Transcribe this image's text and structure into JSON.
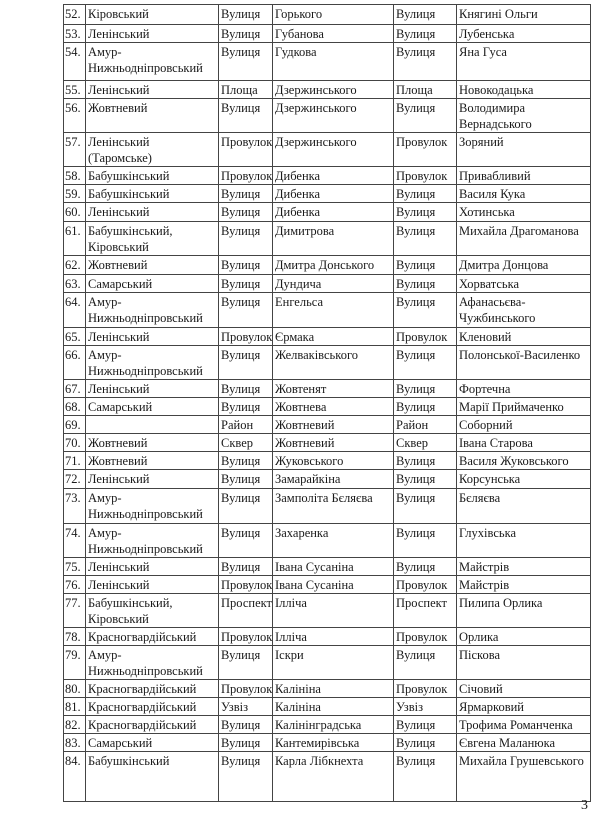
{
  "rows": [
    [
      "52.",
      "Кіровський",
      "Вулиця",
      "Горького",
      "Вулиця",
      "Княгині Ольги"
    ],
    [
      "53.",
      "Ленінський",
      "Вулиця",
      "Губанова",
      "Вулиця",
      "Лубенська"
    ],
    [
      "54.",
      "Амур-Нижньодніпровський",
      "Вулиця",
      "Гудкова",
      "Вулиця",
      "Яна Гуса"
    ],
    [
      "55.",
      "Ленінський",
      "Площа",
      "Дзержинського",
      "Площа",
      "Новокодацька"
    ],
    [
      "56.",
      "Жовтневий",
      "Вулиця",
      "Дзержинського",
      "Вулиця",
      "Володимира Вернадського"
    ],
    [
      "57.",
      "Ленінський (Таромське)",
      "Провулок",
      "Дзержинського",
      "Провулок",
      "Зоряний"
    ],
    [
      "58.",
      "Бабушкінський",
      "Провулок",
      "Дибенка",
      "Провулок",
      "Привабливий"
    ],
    [
      "59.",
      "Бабушкінський",
      "Вулиця",
      "Дибенка",
      "Вулиця",
      "Василя Кука"
    ],
    [
      "60.",
      "Ленінський",
      "Вулиця",
      "Дибенка",
      "Вулиця",
      "Хотинська"
    ],
    [
      "61.",
      "Бабушкінський, Кіровський",
      "Вулиця",
      "Димитрова",
      "Вулиця",
      "Михайла Драгоманова"
    ],
    [
      "62.",
      "Жовтневий",
      "Вулиця",
      "Дмитра Донського",
      "Вулиця",
      "Дмитра Донцова"
    ],
    [
      "63.",
      "Самарський",
      "Вулиця",
      "Дундича",
      "Вулиця",
      "Хорватська"
    ],
    [
      "64.",
      "Амур-Нижньодніпровський",
      "Вулиця",
      "Енгельса",
      "Вулиця",
      "Афанасьєва-Чужбинського"
    ],
    [
      "65.",
      "Ленінський",
      "Провулок",
      "Єрмака",
      "Провулок",
      "Кленовий"
    ],
    [
      "66.",
      "Амур-Нижньодніпровський",
      "Вулиця",
      "Желваківського",
      "Вулиця",
      "Полонської-Василенко"
    ],
    [
      "67.",
      "Ленінський",
      "Вулиця",
      "Жовтенят",
      "Вулиця",
      "Фортечна"
    ],
    [
      "68.",
      "Самарський",
      "Вулиця",
      "Жовтнева",
      "Вулиця",
      "Марії Приймаченко"
    ],
    [
      "69.",
      "",
      "Район",
      "Жовтневий",
      "Район",
      "Соборний"
    ],
    [
      "70.",
      "Жовтневий",
      "Сквер",
      "Жовтневий",
      "Сквер",
      "Івана Старова"
    ],
    [
      "71.",
      "Жовтневий",
      "Вулиця",
      "Жуковського",
      "Вулиця",
      "Василя Жуковського"
    ],
    [
      "72.",
      "Ленінський",
      "Вулиця",
      "Замарайкіна",
      "Вулиця",
      "Корсунська"
    ],
    [
      "73.",
      "Амур-Нижньодніпровський",
      "Вулиця",
      "Замполіта Бєляєва",
      "Вулиця",
      "Бєляєва"
    ],
    [
      "74.",
      "Амур-Нижньодніпровський",
      "Вулиця",
      "Захаренка",
      "Вулиця",
      "Глухівська"
    ],
    [
      "75.",
      "Ленінський",
      "Вулиця",
      "Івана Сусаніна",
      "Вулиця",
      "Майстрів"
    ],
    [
      "76.",
      "Ленінський",
      "Провулок",
      "Івана Сусаніна",
      "Провулок",
      "Майстрів"
    ],
    [
      "77.",
      "Бабушкінський, Кіровський",
      "Проспект",
      "Ілліча",
      "Проспект",
      "Пилипа Орлика"
    ],
    [
      "78.",
      "Красногвардійський",
      "Провулок",
      "Ілліча",
      "Провулок",
      "Орлика"
    ],
    [
      "79.",
      "Амур-Нижньодніпровський",
      "Вулиця",
      "Іскри",
      "Вулиця",
      "Піскова"
    ],
    [
      "80.",
      "Красногвардійський",
      "Провулок",
      "Калініна",
      "Провулок",
      "Січовий"
    ],
    [
      "81.",
      "Красногвардійський",
      "Узвіз",
      "Калініна",
      "Узвіз",
      "Ярмарковий"
    ],
    [
      "82.",
      "Красногвардійський",
      "Вулиця",
      "Калінінградська",
      "Вулиця",
      "Трофима Романченка"
    ],
    [
      "83.",
      "Самарський",
      "Вулиця",
      "Кантемирівська",
      "Вулиця",
      "Євгена Маланюка"
    ],
    [
      "84.",
      "Бабушкінський",
      "Вулиця",
      "Карла Лібкнехта",
      "Вулиця",
      "Михайла Грушевського"
    ]
  ],
  "page_number": "3"
}
